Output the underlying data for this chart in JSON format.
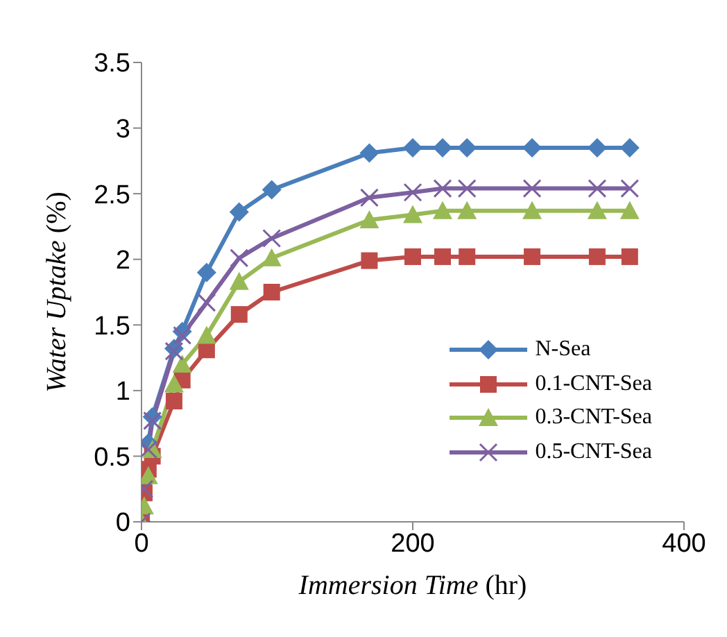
{
  "chart_data": {
    "type": "line",
    "xlabel": "Immersion Time (hr)",
    "ylabel": "Water Uptake (%)",
    "x": [
      0,
      2,
      5,
      8,
      24,
      30,
      48,
      72,
      96,
      168,
      200,
      222,
      240,
      288,
      336,
      360
    ],
    "xlim": [
      0,
      400
    ],
    "xticks": [
      0,
      200,
      400
    ],
    "ylim": [
      0,
      3.5
    ],
    "yticks": [
      0,
      0.5,
      1,
      1.5,
      2,
      2.5,
      3,
      3.5
    ],
    "grid": false,
    "legend": "right",
    "series": [
      {
        "name": "N-Sea",
        "color": "#4a7ebb",
        "marker": "diamond",
        "values": [
          0,
          0.3,
          0.6,
          0.8,
          1.32,
          1.45,
          1.9,
          2.36,
          2.53,
          2.81,
          2.85,
          2.85,
          2.85,
          2.85,
          2.85,
          2.85
        ]
      },
      {
        "name": "0.1-CNT-Sea",
        "color": "#be4b48",
        "marker": "square",
        "values": [
          0,
          0.22,
          0.4,
          0.5,
          0.92,
          1.08,
          1.31,
          1.58,
          1.75,
          1.99,
          2.02,
          2.02,
          2.02,
          2.02,
          2.02,
          2.02
        ]
      },
      {
        "name": "0.3-CNT-Sea",
        "color": "#98b954",
        "marker": "triangle",
        "values": [
          0,
          0.12,
          0.35,
          0.55,
          1.05,
          1.2,
          1.42,
          1.83,
          2.01,
          2.3,
          2.34,
          2.37,
          2.37,
          2.37,
          2.37,
          2.37
        ]
      },
      {
        "name": "0.5-CNT-Sea",
        "color": "#7d60a0",
        "marker": "cross",
        "values": [
          0,
          0.25,
          0.55,
          0.77,
          1.3,
          1.42,
          1.67,
          2.01,
          2.16,
          2.47,
          2.51,
          2.54,
          2.54,
          2.54,
          2.54,
          2.54
        ]
      }
    ]
  }
}
